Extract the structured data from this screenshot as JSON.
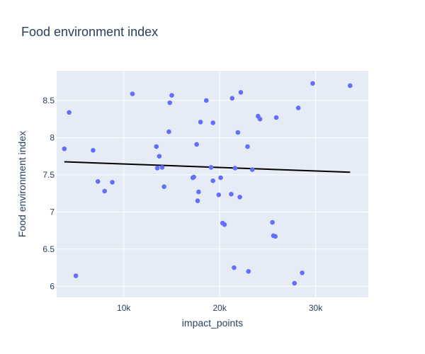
{
  "chart_data": {
    "type": "scatter",
    "title": "Food environment index",
    "xlabel": "impact_points",
    "ylabel": "Food environment index",
    "xlim": [
      3000,
      35500
    ],
    "ylim": [
      5.85,
      8.9
    ],
    "xticks": [
      10000,
      20000,
      30000
    ],
    "xtick_labels": [
      "10k",
      "20k",
      "30k"
    ],
    "yticks": [
      6,
      6.5,
      7,
      7.5,
      8,
      8.5
    ],
    "ytick_labels": [
      "6",
      "6.5",
      "7",
      "7.5",
      "8",
      "8.5"
    ],
    "grid": true,
    "legend": "none",
    "colors": {
      "points": "#636efa",
      "trendline": "#000000",
      "plot_bg": "#e5ecf6",
      "grid": "#ffffff",
      "text": "#2a3f5f"
    },
    "points": [
      {
        "x": 3800,
        "y": 7.85
      },
      {
        "x": 4300,
        "y": 8.34
      },
      {
        "x": 5000,
        "y": 6.14
      },
      {
        "x": 6800,
        "y": 7.83
      },
      {
        "x": 7300,
        "y": 7.41
      },
      {
        "x": 8000,
        "y": 7.28
      },
      {
        "x": 8800,
        "y": 7.4
      },
      {
        "x": 10900,
        "y": 8.59
      },
      {
        "x": 13400,
        "y": 7.88
      },
      {
        "x": 13500,
        "y": 7.59
      },
      {
        "x": 13700,
        "y": 7.75
      },
      {
        "x": 14000,
        "y": 7.6
      },
      {
        "x": 14200,
        "y": 7.34
      },
      {
        "x": 14700,
        "y": 8.08
      },
      {
        "x": 14800,
        "y": 8.47
      },
      {
        "x": 15000,
        "y": 8.57
      },
      {
        "x": 17200,
        "y": 7.46
      },
      {
        "x": 17300,
        "y": 7.47
      },
      {
        "x": 17600,
        "y": 7.91
      },
      {
        "x": 17700,
        "y": 7.15
      },
      {
        "x": 17800,
        "y": 7.27
      },
      {
        "x": 18000,
        "y": 8.21
      },
      {
        "x": 18600,
        "y": 8.5
      },
      {
        "x": 19100,
        "y": 7.6
      },
      {
        "x": 19300,
        "y": 7.42
      },
      {
        "x": 19300,
        "y": 8.2
      },
      {
        "x": 19900,
        "y": 7.23
      },
      {
        "x": 20100,
        "y": 7.46
      },
      {
        "x": 20300,
        "y": 6.85
      },
      {
        "x": 20500,
        "y": 6.83
      },
      {
        "x": 21200,
        "y": 7.24
      },
      {
        "x": 21300,
        "y": 8.53
      },
      {
        "x": 21500,
        "y": 6.25
      },
      {
        "x": 21600,
        "y": 7.59
      },
      {
        "x": 21900,
        "y": 8.07
      },
      {
        "x": 22100,
        "y": 7.2
      },
      {
        "x": 22200,
        "y": 8.61
      },
      {
        "x": 22900,
        "y": 7.88
      },
      {
        "x": 23000,
        "y": 6.2
      },
      {
        "x": 23400,
        "y": 7.57
      },
      {
        "x": 24000,
        "y": 8.29
      },
      {
        "x": 24200,
        "y": 8.25
      },
      {
        "x": 25500,
        "y": 6.86
      },
      {
        "x": 25600,
        "y": 6.68
      },
      {
        "x": 25800,
        "y": 6.67
      },
      {
        "x": 25900,
        "y": 8.27
      },
      {
        "x": 27800,
        "y": 6.04
      },
      {
        "x": 28200,
        "y": 8.4
      },
      {
        "x": 28600,
        "y": 6.18
      },
      {
        "x": 29700,
        "y": 8.73
      },
      {
        "x": 33600,
        "y": 8.7
      }
    ],
    "trendline": {
      "x": [
        3800,
        33600
      ],
      "y": [
        7.675,
        7.535
      ]
    }
  }
}
